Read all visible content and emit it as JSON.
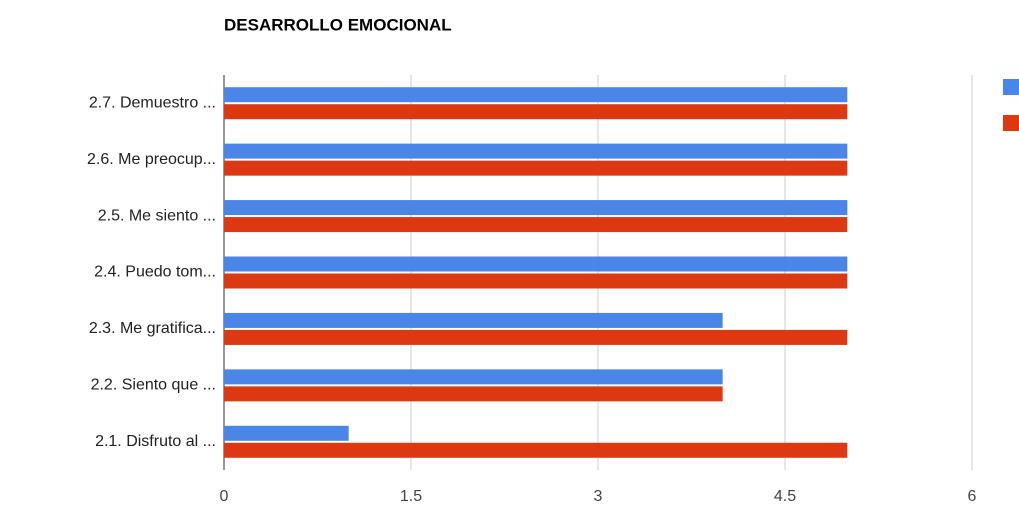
{
  "chart_data": {
    "type": "bar",
    "orientation": "horizontal",
    "title": "DESARROLLO EMOCIONAL",
    "categories": [
      "2.7.  Demuestro ...",
      "2.6.  Me preocup...",
      "2.5.  Me siento ...",
      "2.4.  Puedo tom...",
      "2.3.  Me gratifica...",
      "2.2.  Siento que ...",
      "2.1.  Disfruto al ..."
    ],
    "series": [
      {
        "color": "#4a86e8",
        "values": [
          5,
          5,
          5,
          5,
          4,
          4,
          1
        ]
      },
      {
        "color": "#dc3912",
        "values": [
          5,
          5,
          5,
          5,
          5,
          4,
          5
        ]
      }
    ],
    "xlim": [
      0,
      6
    ],
    "xticks": [
      0,
      1.5,
      3,
      4.5,
      6
    ],
    "grid": true
  }
}
